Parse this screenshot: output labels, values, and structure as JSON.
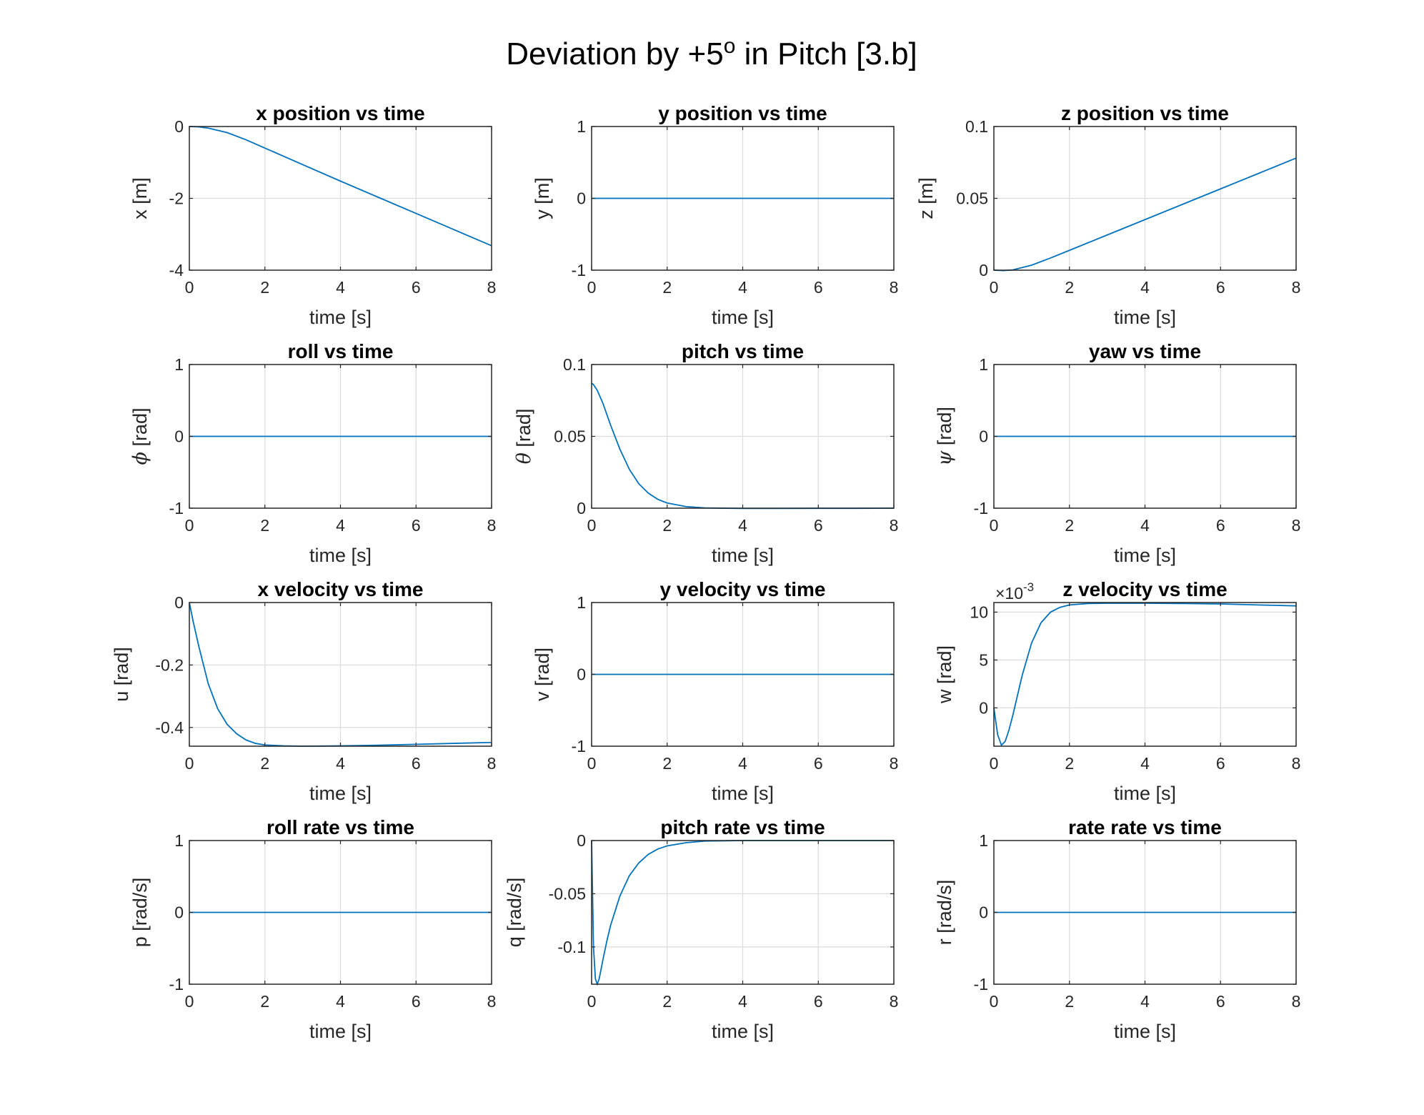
{
  "figure": {
    "title_main": "Deviation by +5",
    "title_sup": "o",
    "title_rest": " in Pitch [3.b]"
  },
  "colors": {
    "line": "#0072bd",
    "axis": "#262626",
    "grid": "#dcdcdc"
  },
  "chart_data": [
    {
      "type": "line",
      "title": "x position vs time",
      "xlabel": "time [s]",
      "ylabel": "x [m]",
      "xlim": [
        0,
        8
      ],
      "ylim": [
        -4,
        0
      ],
      "xticks": [
        0,
        2,
        4,
        6,
        8
      ],
      "yticks": [
        -4,
        -2,
        0
      ],
      "ytick_labels": [
        "-4",
        "-2",
        "0"
      ],
      "grid": true,
      "series": [
        {
          "x": [
            0,
            0.25,
            0.5,
            1,
            1.5,
            2,
            3,
            4,
            5,
            6,
            7,
            8
          ],
          "y": [
            0,
            -0.01,
            -0.045,
            -0.17,
            -0.37,
            -0.6,
            -1.06,
            -1.52,
            -1.97,
            -2.42,
            -2.87,
            -3.32
          ]
        }
      ]
    },
    {
      "type": "line",
      "title": "y position vs time",
      "xlabel": "time [s]",
      "ylabel": "y [m]",
      "xlim": [
        0,
        8
      ],
      "ylim": [
        -1,
        1
      ],
      "xticks": [
        0,
        2,
        4,
        6,
        8
      ],
      "yticks": [
        -1,
        0,
        1
      ],
      "ytick_labels": [
        "-1",
        "0",
        "1"
      ],
      "grid": true,
      "series": [
        {
          "x": [
            0,
            8
          ],
          "y": [
            0,
            0
          ]
        }
      ]
    },
    {
      "type": "line",
      "title": "z position vs time",
      "xlabel": "time [s]",
      "ylabel": "z [m]",
      "xlim": [
        0,
        8
      ],
      "ylim": [
        0,
        0.1
      ],
      "xticks": [
        0,
        2,
        4,
        6,
        8
      ],
      "yticks": [
        0,
        0.05,
        0.1
      ],
      "ytick_labels": [
        "0",
        "0.05",
        "0.1"
      ],
      "grid": true,
      "series": [
        {
          "x": [
            0,
            0.25,
            0.5,
            1,
            1.5,
            2,
            3,
            4,
            5,
            6,
            7,
            8
          ],
          "y": [
            0,
            -0.0003,
            0.0002,
            0.0035,
            0.0085,
            0.0138,
            0.0245,
            0.0352,
            0.0459,
            0.0566,
            0.0673,
            0.078
          ]
        }
      ]
    },
    {
      "type": "line",
      "title": "roll vs time",
      "xlabel": "time [s]",
      "ylabel": "ϕ [rad]",
      "xlim": [
        0,
        8
      ],
      "ylim": [
        -1,
        1
      ],
      "xticks": [
        0,
        2,
        4,
        6,
        8
      ],
      "yticks": [
        -1,
        0,
        1
      ],
      "ytick_labels": [
        "-1",
        "0",
        "1"
      ],
      "grid": true,
      "series": [
        {
          "x": [
            0,
            8
          ],
          "y": [
            0,
            0
          ]
        }
      ]
    },
    {
      "type": "line",
      "title": "pitch vs time",
      "xlabel": "time [s]",
      "ylabel": "θ [rad]",
      "xlim": [
        0,
        8
      ],
      "ylim": [
        0,
        0.1
      ],
      "xticks": [
        0,
        2,
        4,
        6,
        8
      ],
      "yticks": [
        0,
        0.05,
        0.1
      ],
      "ytick_labels": [
        "0",
        "0.05",
        "0.1"
      ],
      "grid": true,
      "series": [
        {
          "x": [
            0,
            0.05,
            0.15,
            0.3,
            0.5,
            0.75,
            1,
            1.25,
            1.5,
            1.75,
            2,
            2.5,
            3,
            4,
            5,
            6,
            7,
            8
          ],
          "y": [
            0.087,
            0.086,
            0.082,
            0.073,
            0.058,
            0.041,
            0.027,
            0.017,
            0.0105,
            0.0062,
            0.0036,
            0.0011,
            0.0002,
            -0.0002,
            -0.0002,
            -0.0001,
            -0.0001,
            0
          ]
        }
      ]
    },
    {
      "type": "line",
      "title": "yaw vs time",
      "xlabel": "time [s]",
      "ylabel": "ψ [rad]",
      "xlim": [
        0,
        8
      ],
      "ylim": [
        -1,
        1
      ],
      "xticks": [
        0,
        2,
        4,
        6,
        8
      ],
      "yticks": [
        -1,
        0,
        1
      ],
      "ytick_labels": [
        "-1",
        "0",
        "1"
      ],
      "grid": true,
      "series": [
        {
          "x": [
            0,
            8
          ],
          "y": [
            0,
            0
          ]
        }
      ]
    },
    {
      "type": "line",
      "title": "x velocity vs time",
      "xlabel": "time [s]",
      "ylabel": "u [rad]",
      "xlim": [
        0,
        8
      ],
      "ylim": [
        -0.46,
        0
      ],
      "xticks": [
        0,
        2,
        4,
        6,
        8
      ],
      "yticks": [
        -0.4,
        -0.2,
        0
      ],
      "ytick_labels": [
        "-0.4",
        "-0.2",
        "0"
      ],
      "grid": true,
      "series": [
        {
          "x": [
            0,
            0.1,
            0.25,
            0.5,
            0.75,
            1,
            1.25,
            1.5,
            1.75,
            2,
            2.5,
            3,
            4,
            5,
            6,
            7,
            8
          ],
          "y": [
            0,
            -0.06,
            -0.14,
            -0.26,
            -0.34,
            -0.39,
            -0.42,
            -0.44,
            -0.451,
            -0.456,
            -0.459,
            -0.46,
            -0.459,
            -0.457,
            -0.454,
            -0.451,
            -0.448
          ]
        }
      ]
    },
    {
      "type": "line",
      "title": "y velocity vs time",
      "xlabel": "time [s]",
      "ylabel": "v [rad]",
      "xlim": [
        0,
        8
      ],
      "ylim": [
        -1,
        1
      ],
      "xticks": [
        0,
        2,
        4,
        6,
        8
      ],
      "yticks": [
        -1,
        0,
        1
      ],
      "ytick_labels": [
        "-1",
        "0",
        "1"
      ],
      "grid": true,
      "series": [
        {
          "x": [
            0,
            8
          ],
          "y": [
            0,
            0
          ]
        }
      ]
    },
    {
      "type": "line",
      "title": "z velocity vs time",
      "xlabel": "time [s]",
      "ylabel": "w [rad]",
      "xlim": [
        0,
        8
      ],
      "ylim": [
        -4,
        11
      ],
      "exponent_base": "×10",
      "exponent_power": "-3",
      "xticks": [
        0,
        2,
        4,
        6,
        8
      ],
      "yticks": [
        0,
        5,
        10
      ],
      "ytick_labels": [
        "0",
        "5",
        "10"
      ],
      "grid": true,
      "series": [
        {
          "x": [
            0,
            0.1,
            0.2,
            0.3,
            0.4,
            0.5,
            0.75,
            1,
            1.25,
            1.5,
            1.75,
            2,
            2.5,
            3,
            4,
            5,
            6,
            7,
            8
          ],
          "y": [
            0,
            -2.8,
            -3.9,
            -3.5,
            -2.3,
            -0.8,
            3.4,
            6.8,
            8.9,
            10.0,
            10.5,
            10.75,
            10.9,
            10.93,
            10.93,
            10.9,
            10.85,
            10.75,
            10.65
          ]
        }
      ]
    },
    {
      "type": "line",
      "title": "roll rate vs time",
      "xlabel": "time [s]",
      "ylabel": "p [rad/s]",
      "xlim": [
        0,
        8
      ],
      "ylim": [
        -1,
        1
      ],
      "xticks": [
        0,
        2,
        4,
        6,
        8
      ],
      "yticks": [
        -1,
        0,
        1
      ],
      "ytick_labels": [
        "-1",
        "0",
        "1"
      ],
      "grid": true,
      "series": [
        {
          "x": [
            0,
            8
          ],
          "y": [
            0,
            0
          ]
        }
      ]
    },
    {
      "type": "line",
      "title": "pitch rate vs time",
      "xlabel": "time [s]",
      "ylabel": "q [rad/s]",
      "xlim": [
        0,
        8
      ],
      "ylim": [
        -0.135,
        0
      ],
      "xticks": [
        0,
        2,
        4,
        6,
        8
      ],
      "yticks": [
        -0.1,
        -0.05,
        0
      ],
      "ytick_labels": [
        "-0.1",
        "-0.05",
        "0"
      ],
      "grid": true,
      "series": [
        {
          "x": [
            0,
            0.05,
            0.1,
            0.15,
            0.2,
            0.3,
            0.4,
            0.5,
            0.75,
            1,
            1.25,
            1.5,
            1.75,
            2,
            2.5,
            3,
            4,
            5,
            6,
            7,
            8
          ],
          "y": [
            0,
            -0.1,
            -0.13,
            -0.135,
            -0.13,
            -0.112,
            -0.095,
            -0.08,
            -0.052,
            -0.033,
            -0.021,
            -0.013,
            -0.008,
            -0.005,
            -0.002,
            -0.0005,
            0,
            0,
            0,
            0,
            0
          ]
        }
      ]
    },
    {
      "type": "line",
      "title": "rate rate vs time",
      "xlabel": "time [s]",
      "ylabel": "r [rad/s]",
      "xlim": [
        0,
        8
      ],
      "ylim": [
        -1,
        1
      ],
      "xticks": [
        0,
        2,
        4,
        6,
        8
      ],
      "yticks": [
        -1,
        0,
        1
      ],
      "ytick_labels": [
        "-1",
        "0",
        "1"
      ],
      "grid": true,
      "series": [
        {
          "x": [
            0,
            8
          ],
          "y": [
            0,
            0
          ]
        }
      ]
    }
  ]
}
